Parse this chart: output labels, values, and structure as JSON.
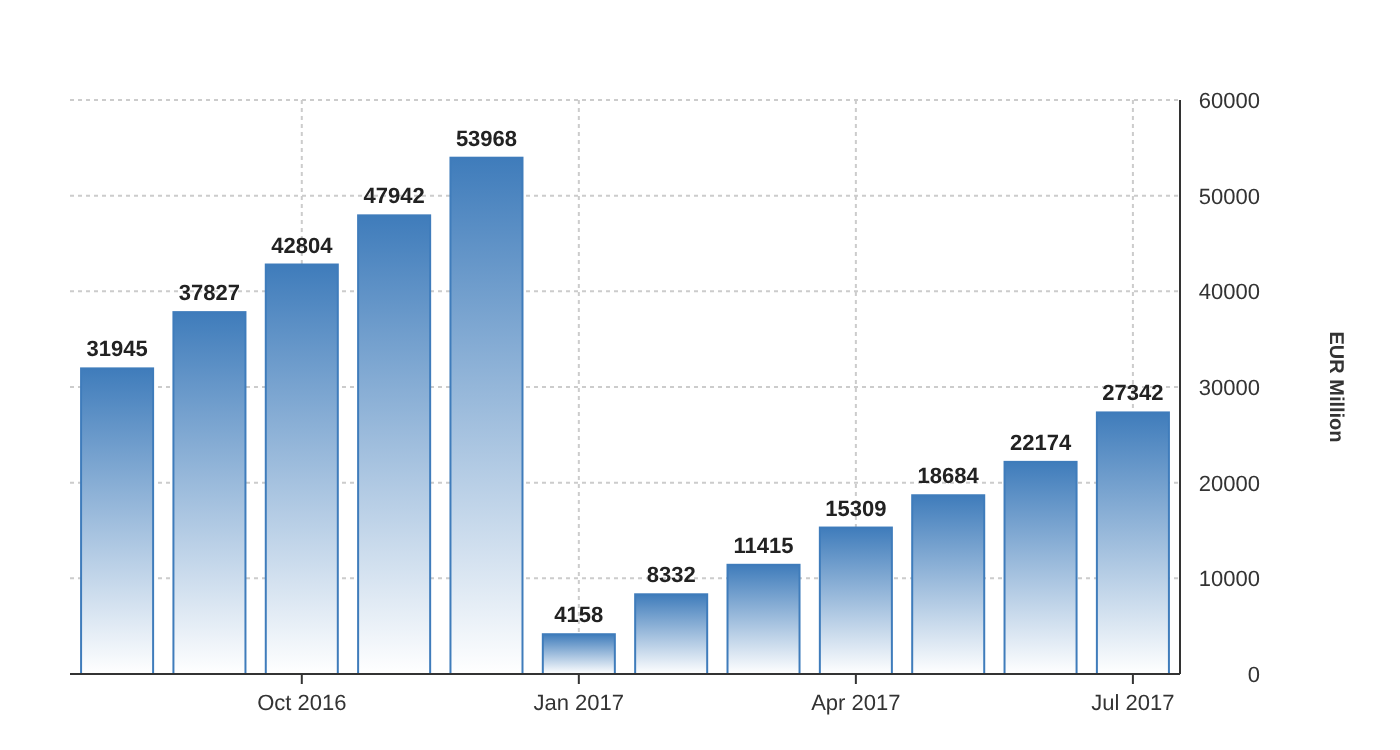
{
  "chart_data": {
    "type": "bar",
    "ylabel": "EUR Million",
    "categories": [
      null,
      null,
      "Oct 2016",
      null,
      null,
      "Jan 2017",
      null,
      null,
      "Apr 2017",
      null,
      null,
      "Jul 2017"
    ],
    "values": [
      31945,
      37827,
      42804,
      47942,
      53968,
      4158,
      8332,
      11415,
      15309,
      18684,
      22174,
      27342
    ],
    "color": "#3f7cbb",
    "ylim": [
      0,
      60000
    ],
    "yticks": [
      0,
      10000,
      20000,
      30000,
      40000,
      50000,
      60000
    ],
    "grid": true,
    "data_labels": true
  }
}
